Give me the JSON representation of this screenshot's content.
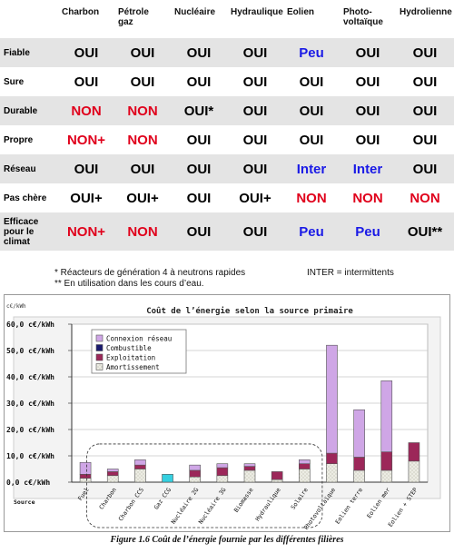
{
  "table": {
    "columns": [
      "",
      "Charbon",
      "Pétrole\ngaz",
      "Nucléaire",
      "Hydraulique",
      "Eolien",
      "Photo-\nvoltaïque",
      "Hydrolienne"
    ],
    "rows": [
      {
        "label": "Fiable",
        "cells": [
          "OUI",
          "OUI",
          "OUI",
          "OUI",
          "Peu",
          "OUI",
          "OUI"
        ]
      },
      {
        "label": "Sure",
        "cells": [
          "OUI",
          "OUI",
          "OUI",
          "OUI",
          "OUI",
          "OUI",
          "OUI"
        ]
      },
      {
        "label": "Durable",
        "cells": [
          "NON",
          "NON",
          "OUI*",
          "OUI",
          "OUI",
          "OUI",
          "OUI"
        ]
      },
      {
        "label": "Propre",
        "cells": [
          "NON+",
          "NON",
          "OUI",
          "OUI",
          "OUI",
          "OUI",
          "OUI"
        ]
      },
      {
        "label": "Réseau",
        "cells": [
          "OUI",
          "OUI",
          "OUI",
          "OUI",
          "Inter",
          "Inter",
          "OUI"
        ]
      },
      {
        "label": "Pas chère",
        "cells": [
          "OUI+",
          "OUI+",
          "OUI",
          "OUI+",
          "NON",
          "NON",
          "NON"
        ]
      },
      {
        "label": "Efficace\npour le\nclimat",
        "cells": [
          "NON+",
          "NON",
          "OUI",
          "OUI",
          "Peu",
          "Peu",
          "OUI**"
        ]
      }
    ],
    "colors": {
      "positive": "#000000",
      "negative": "#e0001b",
      "mixed": "#1a1ae6",
      "stripe": "#e4e4e4"
    }
  },
  "notes": {
    "note1": "*  Réacteurs de génération 4 à neutrons rapides",
    "note1b": "INTER = intermittents",
    "note2": "** En utilisation dans les cours d’eau."
  },
  "chart_data": {
    "type": "bar",
    "stacked": true,
    "title": "Coût de l’énergie selon la source primaire",
    "ylabel": "c€/kWh",
    "xlabel": "Source",
    "ylim": [
      0,
      60
    ],
    "ytick_step": 10,
    "ytick_labels": [
      "0,0  c€/kWh",
      "10,0  c€/kWh",
      "20,0  c€/kWh",
      "30,0  c€/kWh",
      "40,0  c€/kWh",
      "50,0  c€/kWh",
      "60,0  c€/kWh"
    ],
    "grid": true,
    "legend_position": "top-left",
    "categories": [
      "Fuel",
      "Charbon",
      "Charbon CCS",
      "Gaz CCG",
      "Nucléaire 2G",
      "Nucléaire 3G",
      "Biomasse",
      "Hydraulique",
      "Solaire",
      "Photovoltaïque",
      "Eolien terre",
      "Eolien mer",
      "Eolien + STEP"
    ],
    "series": [
      {
        "name": "Amortissement",
        "color": "#ecece4",
        "values": [
          1.5,
          2.5,
          5,
          0,
          2,
          2.5,
          4.5,
          1,
          5,
          7,
          4.5,
          4.5,
          8
        ]
      },
      {
        "name": "Exploitation",
        "color": "#9c2759",
        "values": [
          1.5,
          1.5,
          1.5,
          0,
          2.5,
          3,
          1.5,
          3,
          2,
          4,
          5,
          7,
          7
        ]
      },
      {
        "name": "Combustible",
        "color": "#1a1a6e",
        "values": [
          0,
          0,
          0,
          0,
          0,
          0,
          0,
          0,
          0,
          0,
          0,
          0,
          0
        ]
      },
      {
        "name": "Connexion réseau",
        "color": "#cfa6e6",
        "values": [
          4.5,
          1,
          2,
          3,
          2,
          1.5,
          1,
          0,
          1.5,
          41,
          18,
          27,
          0
        ]
      }
    ],
    "bar_colors": {
      "Gaz CCG": "#35d0e0"
    },
    "caption": "Figure 1.6 Coût de l’énergie fournie par les différentes filières"
  }
}
